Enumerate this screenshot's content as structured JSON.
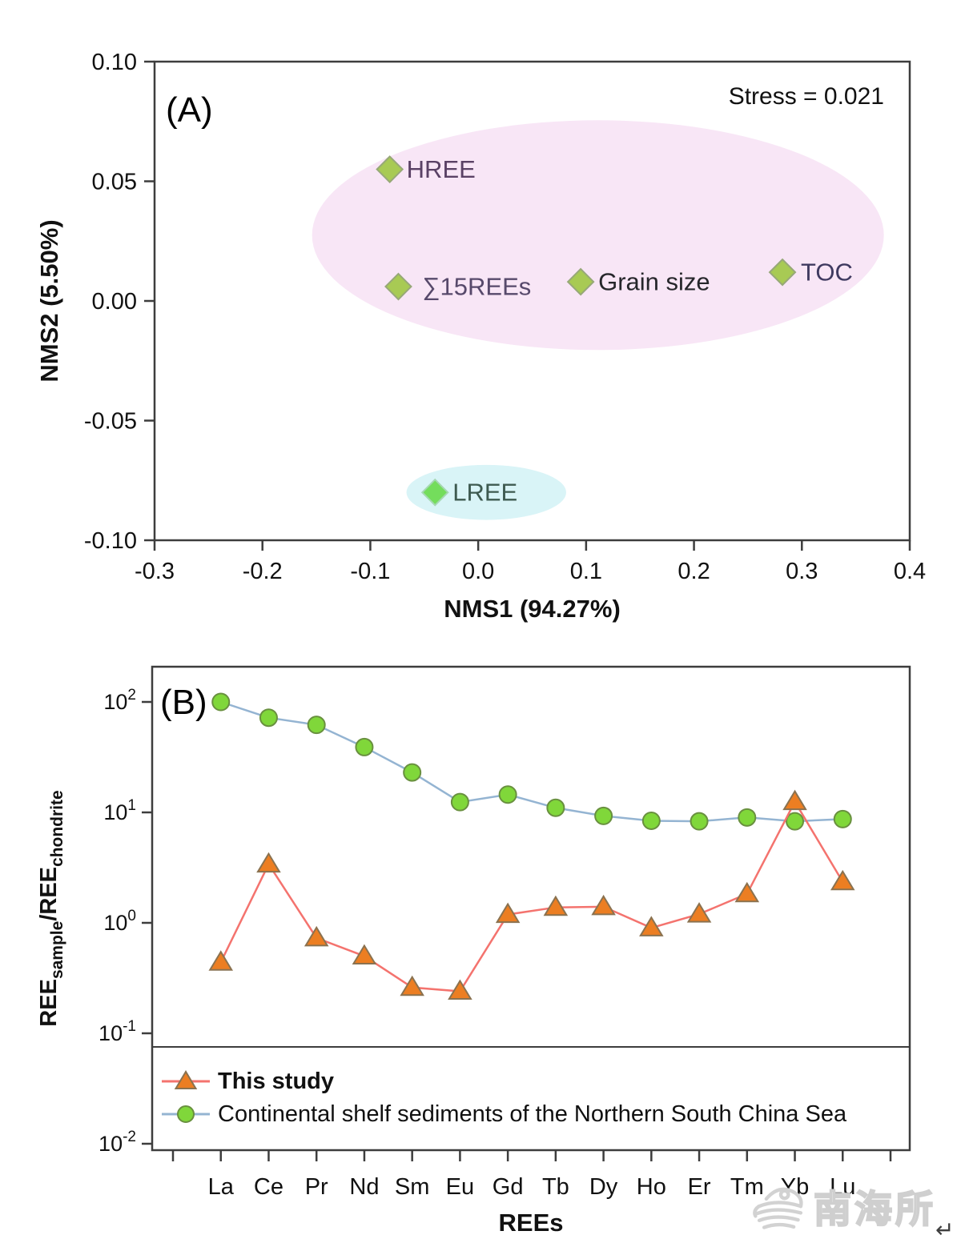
{
  "figure": {
    "watermark_text": "南海所",
    "corner_mark": "↵"
  },
  "chart_data": [
    {
      "id": "panelA",
      "type": "scatter",
      "panel_label": "(A)",
      "annotation": "Stress = 0.021",
      "xlabel": "NMS1 (94.27%)",
      "ylabel": "NMS2 (5.50%)",
      "xlim": [
        -0.3,
        0.4
      ],
      "ylim": [
        -0.1,
        0.1
      ],
      "grid": false,
      "xticks": [
        {
          "v": -0.3,
          "label": "-0.3"
        },
        {
          "v": -0.2,
          "label": "-0.2"
        },
        {
          "v": -0.1,
          "label": "-0.1"
        },
        {
          "v": 0.0,
          "label": "0.0"
        },
        {
          "v": 0.1,
          "label": "0.1"
        },
        {
          "v": 0.2,
          "label": "0.2"
        },
        {
          "v": 0.3,
          "label": "0.3"
        },
        {
          "v": 0.4,
          "label": "0.4"
        }
      ],
      "yticks": [
        {
          "v": 0.1,
          "label": "0.10"
        },
        {
          "v": 0.05,
          "label": "0.05"
        },
        {
          "v": 0.0,
          "label": "0.00"
        },
        {
          "v": -0.05,
          "label": "-0.05"
        },
        {
          "v": -0.1,
          "label": "-0.10"
        }
      ],
      "points": [
        {
          "label": "HREE",
          "x": -0.082,
          "y": 0.055,
          "marker_fill": "#a8ca54",
          "marker_edge": "#97a878",
          "label_color": "#5a4165",
          "label_gap": 5
        },
        {
          "label": "∑15REEs",
          "x": -0.074,
          "y": 0.006,
          "marker_fill": "#a8ca54",
          "marker_edge": "#97a878",
          "label_color": "#57496b",
          "label_gap": 14
        },
        {
          "label": "Grain size",
          "x": 0.095,
          "y": 0.008,
          "marker_fill": "#a8ca54",
          "marker_edge": "#97a878",
          "label_color": "#26262b",
          "label_gap": 6
        },
        {
          "label": "TOC",
          "x": 0.282,
          "y": 0.012,
          "marker_fill": "#a8ca54",
          "marker_edge": "#97a878",
          "label_color": "#3f3a60",
          "label_gap": 7
        },
        {
          "label": "LREE",
          "x": -0.04,
          "y": -0.08,
          "marker_fill": "#74dd5c",
          "marker_edge": "#a5d8b2",
          "label_color": "#3e5a50",
          "label_gap": 6
        }
      ],
      "ellipses": [
        {
          "name": "pink-group-ellipse",
          "cx": 0.111,
          "cy": 0.0275,
          "rx": 0.265,
          "ry": 0.048,
          "fill": "#f8e6f6"
        },
        {
          "name": "cyan-group-ellipse",
          "cx": 0.0075,
          "cy": -0.08,
          "rx": 0.074,
          "ry": 0.0115,
          "fill": "#d9f4f7"
        }
      ]
    },
    {
      "id": "panelB",
      "type": "line",
      "panel_label": "(B)",
      "xlabel": "REEs",
      "ylabel_parts": [
        {
          "t": "REE"
        },
        {
          "t": "sample",
          "script": "sub"
        },
        {
          "t": "/REE"
        },
        {
          "t": "chondrite",
          "script": "sub"
        }
      ],
      "y_scale": "log",
      "ylim_exponents": [
        -2,
        2
      ],
      "ytick_exponents": [
        2,
        1,
        0,
        -1,
        -2
      ],
      "categories": [
        "La",
        "Ce",
        "Pr",
        "Nd",
        "Sm",
        "Eu",
        "Gd",
        "Tb",
        "Dy",
        "Ho",
        "Er",
        "Tm",
        "Yb",
        "Lu"
      ],
      "series": [
        {
          "name": "Continental shelf sediments of the Northern South China Sea",
          "marker": "circle",
          "line_color": "#94b4d2",
          "marker_fill": "#80d73a",
          "marker_edge": "#69903f",
          "bold_label": false,
          "values": [
            100,
            72,
            62,
            39,
            23,
            12.4,
            14.5,
            11,
            9.3,
            8.4,
            8.3,
            9,
            8.3,
            8.7
          ]
        },
        {
          "name": "This study",
          "marker": "triangle",
          "line_color": "#f4736e",
          "marker_fill": "#ec7e22",
          "marker_edge": "#8a7250",
          "bold_label": true,
          "values": [
            0.44,
            3.4,
            0.73,
            0.5,
            0.26,
            0.24,
            1.19,
            1.38,
            1.4,
            0.9,
            1.2,
            1.83,
            12.5,
            2.35
          ]
        }
      ],
      "legend_position": "bottom-inset",
      "legend_order": [
        "This study",
        "Continental shelf sediments of the Northern South China Sea"
      ]
    }
  ]
}
